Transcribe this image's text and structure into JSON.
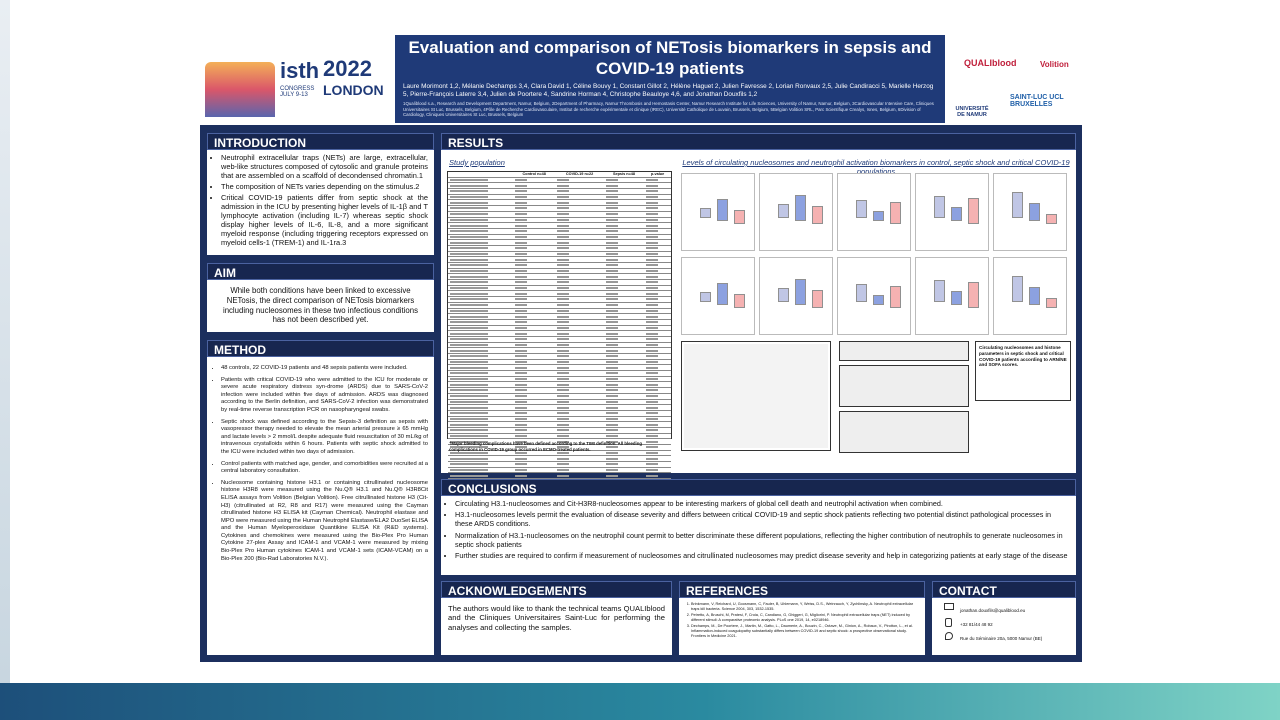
{
  "header": {
    "title": "Evaluation and comparison of NETosis biomarkers in sepsis and COVID-19 patients",
    "authors": "Laure Morimont 1,2, Mélanie Dechamps 3,4, Clara David 1, Céline Bouvy 1, Constant Gillot 2, Hélène Haguet 2, Julien Favresse 2, Lorian Ronvaux 2,5, Julie Candiracci 5, Marielle Herzog 5, Pierre-François Laterre 3,4, Julien de Poortere 4, Sandrine Horman 4, Christophe Beauloye 4,6, and Jonathan Douxfils 1,2",
    "affiliations": "1Qualiblood s.a., Research and Development Department, Namur, Belgium, 2Department of Pharmacy, Namur Thrombosis and Hemostasis Center, Namur Research Institute for Life Sciences, University of Namur, Namur, Belgium, 3Cardiovascular Intensive Care, Cliniques Universitaires St Luc, Brussels, Belgium, 4Pôle de Recherche Cardiovasculaire, Institut de recherche expérimentale et clinique (IREC), Université Catholique de Louvain, Brussels, Belgium, 5Belgian Volition SRL, Parc Scientifique Crealys, Isnes, Belgium, 6Division of Cardiology, Cliniques Universitaires St Luc, Brussels, Belgium",
    "logos": {
      "isth": "isth",
      "congress": "CONGRESS JULY 9-13",
      "year": "2022",
      "city": "LONDON",
      "qualiblood": "QUALIblood",
      "volition": "Volition",
      "namur": "UNIVERSITÉ DE NAMUR",
      "saintluc": "SAINT-LUC UCL BRUXELLES"
    }
  },
  "introduction": {
    "heading": "INTRODUCTION",
    "bullets": [
      "Neutrophil extracellular traps (NETs) are large, extracellular, web-like structures composed of cytosolic and granule proteins that are assembled on a scaffold of decondensed chromatin.1",
      "The composition of NETs varies depending on the stimulus.2",
      "Critical COVID-19 patients differ from septic shock at the admission in the ICU by presenting higher levels of IL-1β and T lymphocyte activation (including IL-7) whereas septic shock display higher levels of IL-6, IL-8, and a more significant myeloid response (including triggering receptors expressed on myeloid cells-1 (TREM-1) and IL-1ra.3"
    ]
  },
  "aim": {
    "heading": "AIM",
    "text": "While both conditions have been linked to excessive NETosis, the direct comparison of NETosis biomarkers including nucleosomes in these two infectious conditions has not been described yet."
  },
  "method": {
    "heading": "METHOD",
    "bullets": [
      "48 controls, 22 COVID-19 patients and 48 sepsis patients were included.",
      "Patients with critical COVID-19 who were admitted to the ICU for moderate or severe acute respiratory distress syn-drome (ARDS) due to SARS-CoV-2 infection were included within five days of admission. ARDS was diagnosed according to the Berlin definition, and SARS-CoV-2 infection was demonstrated by real-time reverse transcription PCR on nasopharyngeal swabs.",
      "Septic shock was defined according to the Sepsis-3 definition as sepsis with vasopressor therapy needed to elevate the mean arterial pressure ≥ 65 mmHg and lactate levels > 2 mmol/L despite adequate fluid resuscitation of 30 mL/kg of intravenous crystalloids within 6 hours. Patients with septic shock admitted to the ICU were included within two days of admission.",
      "Control patients with matched age, gender, and comorbidities were recruited at a central laboratory consultation.",
      "Nucleosome containing histone H3.1 or containing citrullinated nucleosome histone H3R8 were measured using the Nu.Q® H3.1 and Nu.Q® H3R8Cit ELISA assays from Volition (Belgian Volition). Free citrullinated histone H3 (Cit-H3) (citrullinated at R2, R8 and R17) were measured using the Cayman citrullinated histone H3 ELISA kit (Cayman Chemical). Neutrophil elastase and MPO were measured using the Human Neutrophil Elastase/ELA2 DuoSet ELISA and the Human Myeloperoxidase Quantikine ELISA Kit (R&D systems). Cytokines and chemokines were measured using the Bio-Plex Pro Human Cytokine 27-plex Assay and ICAM-1 and VCAM-1 were measured by mixing Bio-Plex Pro Human cytokines ICAM-1 and VCAM-1 sets (ICAM-VCAM) on a Bio-Plex 200 (Bio-Rad Laboratories N.V.)."
    ]
  },
  "results": {
    "heading": "RESULTS",
    "study_population": "Study population",
    "levels_title": "Levels of circulating nucleosomes and neutrophil activation biomarkers in control, septic shock and critical COVID-19 populations",
    "table_headers": [
      "Control n=48",
      "COVID-19 n=22",
      "Sepsis n=48",
      "p-value"
    ],
    "footnote": "†Major bleeding complications have been defined according to the TIMI definition. All bleeding complications in COVID-19 group occurred in ECMO-treated patients.",
    "score_caption": "Circulating nucleosomes and histone parameters in septic shock and critical COVID-19 patients according to ARN/NE and SOFA scores."
  },
  "conclusions": {
    "heading": "CONCLUSIONS",
    "bullets": [
      "Circulating H3.1-nucleosomes and Cit-H3R8-nucleosomes appear to be interesting markers of global cell death and neutrophil activation when combined.",
      "H3.1-nucleosomes levels permit the evaluation of disease severity and differs between critical COVID-19 and septic shock patients reflecting two potential distinct pathological processes in these ARDS conditions.",
      "Normalization of H3.1-nucleosomes on the neutrophil count permit to better discriminate these different populations, reflecting the higher contribution of neutrophils to generate nucleosomes in septic shock patients",
      "Further studies are required to confirm if measurement of nucleosomes and citrullinated nucleosomes may predict disease severity and help in categorizing patients at early stage of the disease"
    ]
  },
  "acknowledgements": {
    "heading": "ACKNOWLEDGEMENTS",
    "text": "The authors would like to thank the technical teams QUALIblood and the Cliniques Universitaires Saint-Luc for performing the analyses and collecting the samples."
  },
  "references": {
    "heading": "REFERENCES",
    "items": [
      "Brinkmann, V, Reichard, U, Goosmann, C, Fauler, B, Uhlemann, Y, Weiss, D.S., Weinrauch, Y, Zychlinsky, A. Neutrophil extracellular traps kill bacteria. Science 2004, 303, 1532-1535.",
      "Petretto, A, Bruschi, M, Pratesi, F, Croia, C, Candiano, G, Ghiggeri, G, Migliorini, P. Neutrophil extracellular traps (NET) induced by different stimuli: A comparative proteomic analysis. PLoS one 2019, 14, e0218946.",
      "Dechamps, M., De Poortere, J., Martin, M., Gatto, L., Daumerie, A., Bouzin, C., Octave, M., Ginion, A., Robaux, V., Pirotton, L., et al. Inflammation-induced coagulopathy substantially differs between COVID-19 and septic shock: a prospective observational study. Frontiers in Medicine 2021."
    ]
  },
  "contact": {
    "heading": "CONTACT",
    "email": "jonathan.douxfils@qualiblood.eu",
    "phone": "+32 81/44 48 92",
    "address": "Rue du Séminaire 20a, 5000 Namur (BE)"
  }
}
